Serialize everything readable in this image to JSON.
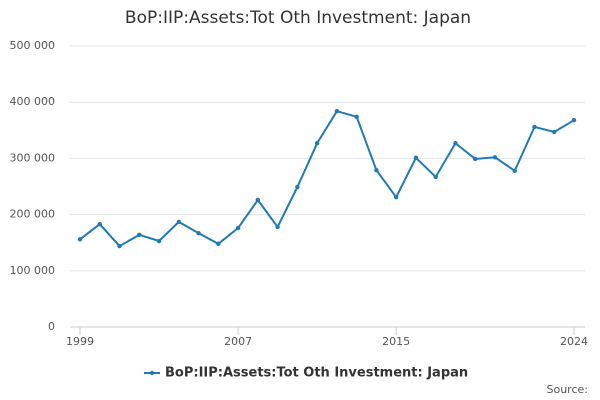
{
  "chart_data": {
    "type": "line",
    "title": "BoP:IIP:Assets:Tot Oth Investment: Japan",
    "x": [
      1999,
      2000,
      2001,
      2002,
      2003,
      2004,
      2005,
      2006,
      2007,
      2008,
      2009,
      2010,
      2011,
      2012,
      2013,
      2014,
      2015,
      2016,
      2017,
      2018,
      2019,
      2020,
      2021,
      2022,
      2023,
      2024
    ],
    "series": [
      {
        "name": "BoP:IIP:Assets:Tot Oth Investment: Japan",
        "color": "#1f7bb6",
        "values": [
          156000,
          183000,
          144000,
          164000,
          153000,
          187000,
          167000,
          148000,
          176000,
          226000,
          178000,
          249000,
          327000,
          384000,
          374000,
          279000,
          231000,
          301000,
          267000,
          327000,
          299000,
          302000,
          278000,
          356000,
          347000,
          368000
        ]
      }
    ],
    "xlim": [
      1999,
      2024
    ],
    "xticks": [
      1999,
      2007,
      2015,
      2024
    ],
    "ylim": [
      0,
      500000
    ],
    "yticks": [
      0,
      {
        "value": 100000,
        "label": "100 000"
      },
      {
        "value": 200000,
        "label": "200 000"
      },
      {
        "value": 300000,
        "label": "300 000"
      },
      {
        "value": 400000,
        "label": "400 000"
      },
      {
        "value": 500000,
        "label": "500 000"
      }
    ],
    "grid": true,
    "legend": "bottom",
    "source": "Source:"
  }
}
